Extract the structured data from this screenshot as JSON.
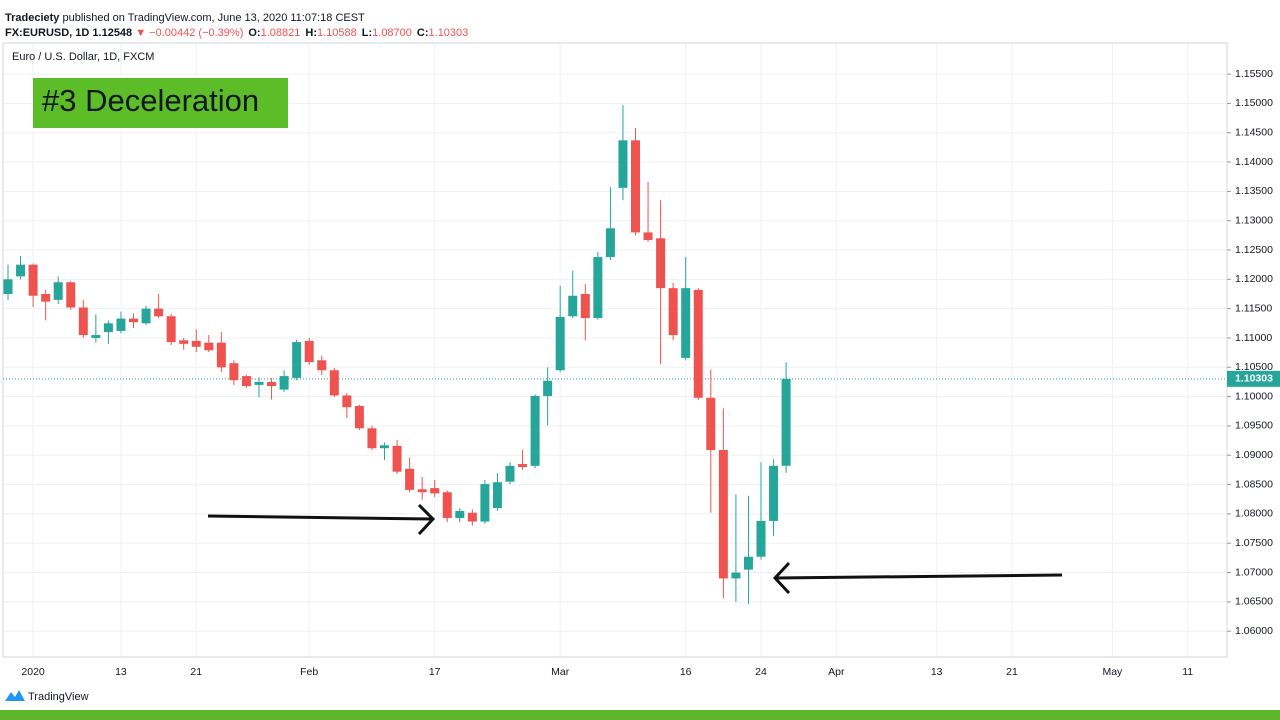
{
  "header": {
    "publisher": "Tradeciety",
    "published": "published on TradingView.com, June 13, 2020 11:07:18 CEST",
    "symbol": "FX:EURUSD, 1D",
    "price": "1.12548",
    "change": "▼ −0.00442 (−0.39%)",
    "ohlc": [
      {
        "key": "O:",
        "value": "1.08821"
      },
      {
        "key": "H:",
        "value": "1.10588"
      },
      {
        "key": "L:",
        "value": "1.08700"
      },
      {
        "key": "C:",
        "value": "1.10303"
      }
    ]
  },
  "footer": {
    "brand": "TradingView"
  },
  "chart_data": {
    "type": "candlestick",
    "title": "Euro / U.S. Dollar, 1D, FXCM",
    "annotation": "#3 Deceleration",
    "up_color": "#26a69a",
    "down_color": "#ef5350",
    "grid": true,
    "categories": [
      null,
      null,
      "2020",
      null,
      null,
      null,
      null,
      null,
      null,
      "13",
      null,
      null,
      null,
      null,
      null,
      "21",
      null,
      null,
      null,
      null,
      null,
      null,
      null,
      null,
      "Feb",
      null,
      null,
      null,
      null,
      null,
      null,
      null,
      null,
      null,
      "17",
      null,
      null,
      null,
      null,
      null,
      null,
      null,
      null,
      null,
      "Mar",
      null,
      null,
      null,
      null,
      null,
      null,
      null,
      null,
      null,
      "16",
      null,
      null,
      null,
      null,
      null,
      "24",
      null,
      null,
      null,
      null,
      null,
      "Apr",
      null,
      null,
      null,
      null,
      null,
      null,
      null,
      "13",
      null,
      null,
      null,
      null,
      null,
      "21",
      null,
      null,
      null,
      null,
      null,
      null,
      null,
      "May",
      null,
      null,
      null,
      null,
      null,
      "11"
    ],
    "open": [
      1.1175,
      1.1205,
      1.1225,
      1.1175,
      1.1165,
      1.1195,
      1.1152,
      1.11,
      1.111,
      1.1112,
      1.1133,
      1.1125,
      1.115,
      1.1137,
      1.1096,
      1.1095,
      1.1092,
      1.1092,
      1.1057,
      1.1035,
      1.102,
      1.1025,
      1.1012,
      1.1032,
      1.1095,
      1.1062,
      1.1045,
      1.1002,
      1.0984,
      1.0946,
      1.0912,
      1.0916,
      1.0877,
      1.0842,
      1.0844,
      1.0837,
      1.0793,
      1.0802,
      1.0787,
      1.081,
      1.0855,
      1.0885,
      1.0882,
      1.1001,
      1.1045,
      1.1137,
      1.1175,
      1.1134,
      1.1238,
      1.1356,
      1.1437,
      1.128,
      1.127,
      1.1185,
      1.1066,
      1.1182,
      1.0998,
      1.0909,
      1.069,
      1.0705,
      1.0727,
      1.0788,
      1.08821,
      null,
      null,
      null,
      null,
      null,
      null,
      null,
      null,
      null,
      null,
      null,
      null,
      null,
      null,
      null,
      null,
      null,
      null,
      null,
      null,
      null,
      null,
      null,
      null,
      null,
      null,
      null,
      null,
      null,
      null,
      null,
      null
    ],
    "high": [
      1.1225,
      1.124,
      1.1227,
      1.1182,
      1.1205,
      1.1197,
      1.1165,
      1.114,
      1.113,
      1.1145,
      1.1142,
      1.1155,
      1.1175,
      1.1141,
      1.11,
      1.1115,
      1.1105,
      1.111,
      1.1062,
      1.1037,
      1.1033,
      1.1032,
      1.1045,
      1.1097,
      1.11,
      1.107,
      1.1049,
      1.1006,
      1.0986,
      1.0951,
      1.0922,
      1.0926,
      1.0896,
      1.0863,
      1.0858,
      1.084,
      1.081,
      1.0808,
      1.0858,
      1.087,
      1.0888,
      1.0909,
      1.1004,
      1.105,
      1.1189,
      1.1215,
      1.1192,
      1.1247,
      1.1357,
      1.1497,
      1.1458,
      1.1366,
      1.1335,
      1.1194,
      1.1238,
      1.1185,
      1.1046,
      1.098,
      1.0833,
      1.0831,
      1.0888,
      1.0893,
      1.10588,
      null,
      null,
      null,
      null,
      null,
      null,
      null,
      null,
      null,
      null,
      null,
      null,
      null,
      null,
      null,
      null,
      null,
      null,
      null,
      null,
      null,
      null,
      null,
      null,
      null,
      null,
      null,
      null,
      null,
      null,
      null,
      null
    ],
    "low": [
      1.1165,
      1.12,
      1.1153,
      1.113,
      1.1158,
      1.1148,
      1.11,
      1.1092,
      1.109,
      1.1108,
      1.1117,
      1.1122,
      1.1134,
      1.1088,
      1.108,
      1.1076,
      1.1076,
      1.1042,
      1.102,
      1.1015,
      1.0999,
      1.0995,
      1.1008,
      1.1028,
      1.1054,
      1.1037,
      1.0999,
      1.0963,
      1.0943,
      1.0909,
      1.0892,
      1.0868,
      1.0837,
      1.0824,
      1.0829,
      1.0786,
      1.0786,
      1.078,
      1.0783,
      1.0805,
      1.0851,
      1.0875,
      1.0878,
      1.0951,
      1.1042,
      1.1134,
      1.1096,
      1.1131,
      1.1233,
      1.1335,
      1.1275,
      1.1264,
      1.1055,
      1.1096,
      1.1062,
      1.0994,
      1.0802,
      1.0656,
      1.065,
      1.0646,
      1.0722,
      1.0762,
      1.087,
      null,
      null,
      null,
      null,
      null,
      null,
      null,
      null,
      null,
      null,
      null,
      null,
      null,
      null,
      null,
      null,
      null,
      null,
      null,
      null,
      null,
      null,
      null,
      null,
      null,
      null,
      null,
      null,
      null,
      null,
      null,
      null
    ],
    "close": [
      1.12,
      1.1225,
      1.1172,
      1.1162,
      1.1195,
      1.1152,
      1.1105,
      1.1105,
      1.1125,
      1.1133,
      1.1127,
      1.115,
      1.1137,
      1.1093,
      1.109,
      1.1085,
      1.1079,
      1.105,
      1.1028,
      1.1018,
      1.1025,
      1.1018,
      1.1035,
      1.1093,
      1.1059,
      1.1045,
      1.1002,
      1.0982,
      1.0946,
      1.0912,
      1.0917,
      1.0872,
      1.0841,
      1.0837,
      1.0835,
      1.0793,
      1.0805,
      1.0787,
      1.0851,
      1.0854,
      1.0882,
      1.088,
      1.1001,
      1.1027,
      1.1136,
      1.1172,
      1.1134,
      1.1238,
      1.1287,
      1.1437,
      1.128,
      1.1267,
      1.1185,
      1.1105,
      1.1185,
      1.0998,
      1.0909,
      1.069,
      1.07,
      1.0727,
      1.0788,
      1.0882,
      1.10303,
      null,
      null,
      null,
      null,
      null,
      null,
      null,
      null,
      null,
      null,
      null,
      null,
      null,
      null,
      null,
      null,
      null,
      null,
      null,
      null,
      null,
      null,
      null,
      null,
      null,
      null,
      null,
      null,
      null,
      null,
      null,
      null
    ],
    "last_price": {
      "value": 1.10303,
      "label": "1.10303"
    },
    "ylim": [
      1.0556,
      1.1603
    ],
    "yticks": [
      {
        "value": 1.06,
        "label": "1.06000"
      },
      {
        "value": 1.065,
        "label": "1.06500"
      },
      {
        "value": 1.07,
        "label": "1.07000"
      },
      {
        "value": 1.075,
        "label": "1.07500"
      },
      {
        "value": 1.08,
        "label": "1.08000"
      },
      {
        "value": 1.085,
        "label": "1.08500"
      },
      {
        "value": 1.09,
        "label": "1.09000"
      },
      {
        "value": 1.095,
        "label": "1.09500"
      },
      {
        "value": 1.1,
        "label": "1.10000"
      },
      {
        "value": 1.105,
        "label": "1.10500"
      },
      {
        "value": 1.11,
        "label": "1.11000"
      },
      {
        "value": 1.115,
        "label": "1.11500"
      },
      {
        "value": 1.12,
        "label": "1.12000"
      },
      {
        "value": 1.125,
        "label": "1.12500"
      },
      {
        "value": 1.13,
        "label": "1.13000"
      },
      {
        "value": 1.135,
        "label": "1.13500"
      },
      {
        "value": 1.14,
        "label": "1.14000"
      },
      {
        "value": 1.145,
        "label": "1.14500"
      },
      {
        "value": 1.15,
        "label": "1.15000"
      },
      {
        "value": 1.155,
        "label": "1.15500"
      }
    ]
  }
}
